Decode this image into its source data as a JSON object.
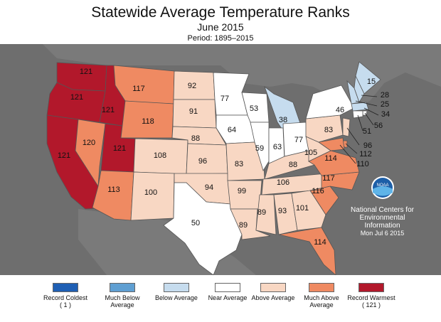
{
  "header": {
    "title": "Statewide Average Temperature Ranks",
    "subtitle": "June 2015",
    "period": "Period: 1895–2015"
  },
  "colors": {
    "background_gray": "#6e6e6e",
    "record_coldest": "#1f5fb4",
    "much_below": "#5f9fd2",
    "below": "#c6dcee",
    "near": "#ffffff",
    "above": "#f8d7c3",
    "much_above": "#ef8a62",
    "record_warmest": "#b2182b"
  },
  "legend": [
    {
      "label": "Record Coldest",
      "extra": "( 1 )",
      "color": "#1f5fb4"
    },
    {
      "label": "Much Below Average",
      "extra": "",
      "color": "#5f9fd2"
    },
    {
      "label": "Below Average",
      "extra": "",
      "color": "#c6dcee"
    },
    {
      "label": "Near Average",
      "extra": "",
      "color": "#ffffff"
    },
    {
      "label": "Above Average",
      "extra": "",
      "color": "#f8d7c3"
    },
    {
      "label": "Much Above Average",
      "extra": "",
      "color": "#ef8a62"
    },
    {
      "label": "Record Warmest",
      "extra": "( 121 )",
      "color": "#b2182b"
    }
  ],
  "noaa": {
    "logo_text": "NOAA",
    "line1": "National Centers for",
    "line2": "Environmental",
    "line3": "Information",
    "date": "Mon Jul  6 2015"
  },
  "states": [
    {
      "id": "WA",
      "rank": "121",
      "category": "record_warmest"
    },
    {
      "id": "OR",
      "rank": "121",
      "category": "record_warmest"
    },
    {
      "id": "ID",
      "rank": "121",
      "category": "record_warmest"
    },
    {
      "id": "CA",
      "rank": "121",
      "category": "record_warmest"
    },
    {
      "id": "NV",
      "rank": "120",
      "category": "much_above"
    },
    {
      "id": "UT",
      "rank": "121",
      "category": "record_warmest"
    },
    {
      "id": "AZ",
      "rank": "113",
      "category": "much_above"
    },
    {
      "id": "MT",
      "rank": "117",
      "category": "much_above"
    },
    {
      "id": "WY",
      "rank": "118",
      "category": "much_above"
    },
    {
      "id": "CO",
      "rank": "108",
      "category": "above"
    },
    {
      "id": "NM",
      "rank": "100",
      "category": "above"
    },
    {
      "id": "ND",
      "rank": "92",
      "category": "above"
    },
    {
      "id": "SD",
      "rank": "91",
      "category": "above"
    },
    {
      "id": "NE",
      "rank": "88",
      "category": "above"
    },
    {
      "id": "KS",
      "rank": "96",
      "category": "above"
    },
    {
      "id": "OK",
      "rank": "94",
      "category": "above"
    },
    {
      "id": "TX",
      "rank": "50",
      "category": "near"
    },
    {
      "id": "MN",
      "rank": "77",
      "category": "near"
    },
    {
      "id": "IA",
      "rank": "64",
      "category": "near"
    },
    {
      "id": "MO",
      "rank": "83",
      "category": "above"
    },
    {
      "id": "AR",
      "rank": "99",
      "category": "above"
    },
    {
      "id": "LA",
      "rank": "89",
      "category": "above"
    },
    {
      "id": "WI",
      "rank": "53",
      "category": "near"
    },
    {
      "id": "IL",
      "rank": "59",
      "category": "near"
    },
    {
      "id": "MI",
      "rank": "38",
      "category": "below"
    },
    {
      "id": "IN",
      "rank": "63",
      "category": "near"
    },
    {
      "id": "OH",
      "rank": "77",
      "category": "near"
    },
    {
      "id": "KY",
      "rank": "88",
      "category": "above"
    },
    {
      "id": "TN",
      "rank": "106",
      "category": "above"
    },
    {
      "id": "MS",
      "rank": "89",
      "category": "above"
    },
    {
      "id": "AL",
      "rank": "93",
      "category": "above"
    },
    {
      "id": "GA",
      "rank": "101",
      "category": "above"
    },
    {
      "id": "FL",
      "rank": "114",
      "category": "much_above"
    },
    {
      "id": "SC",
      "rank": "116",
      "category": "much_above"
    },
    {
      "id": "NC",
      "rank": "117",
      "category": "much_above"
    },
    {
      "id": "VA",
      "rank": "114",
      "category": "much_above"
    },
    {
      "id": "WV",
      "rank": "105",
      "category": "above"
    },
    {
      "id": "PA",
      "rank": "83",
      "category": "above"
    },
    {
      "id": "NY",
      "rank": "46",
      "category": "near"
    },
    {
      "id": "ME",
      "rank": "15",
      "category": "below"
    },
    {
      "id": "NH",
      "rank": "28",
      "category": "below"
    },
    {
      "id": "VT",
      "rank": "25",
      "category": "below"
    },
    {
      "id": "MA",
      "rank": "34",
      "category": "below"
    },
    {
      "id": "RI",
      "rank": "56",
      "category": "near"
    },
    {
      "id": "CT",
      "rank": "51",
      "category": "near"
    },
    {
      "id": "NJ",
      "rank": "96",
      "category": "above"
    },
    {
      "id": "DE",
      "rank": "112",
      "category": "much_above"
    },
    {
      "id": "MD",
      "rank": "110",
      "category": "much_above"
    }
  ]
}
